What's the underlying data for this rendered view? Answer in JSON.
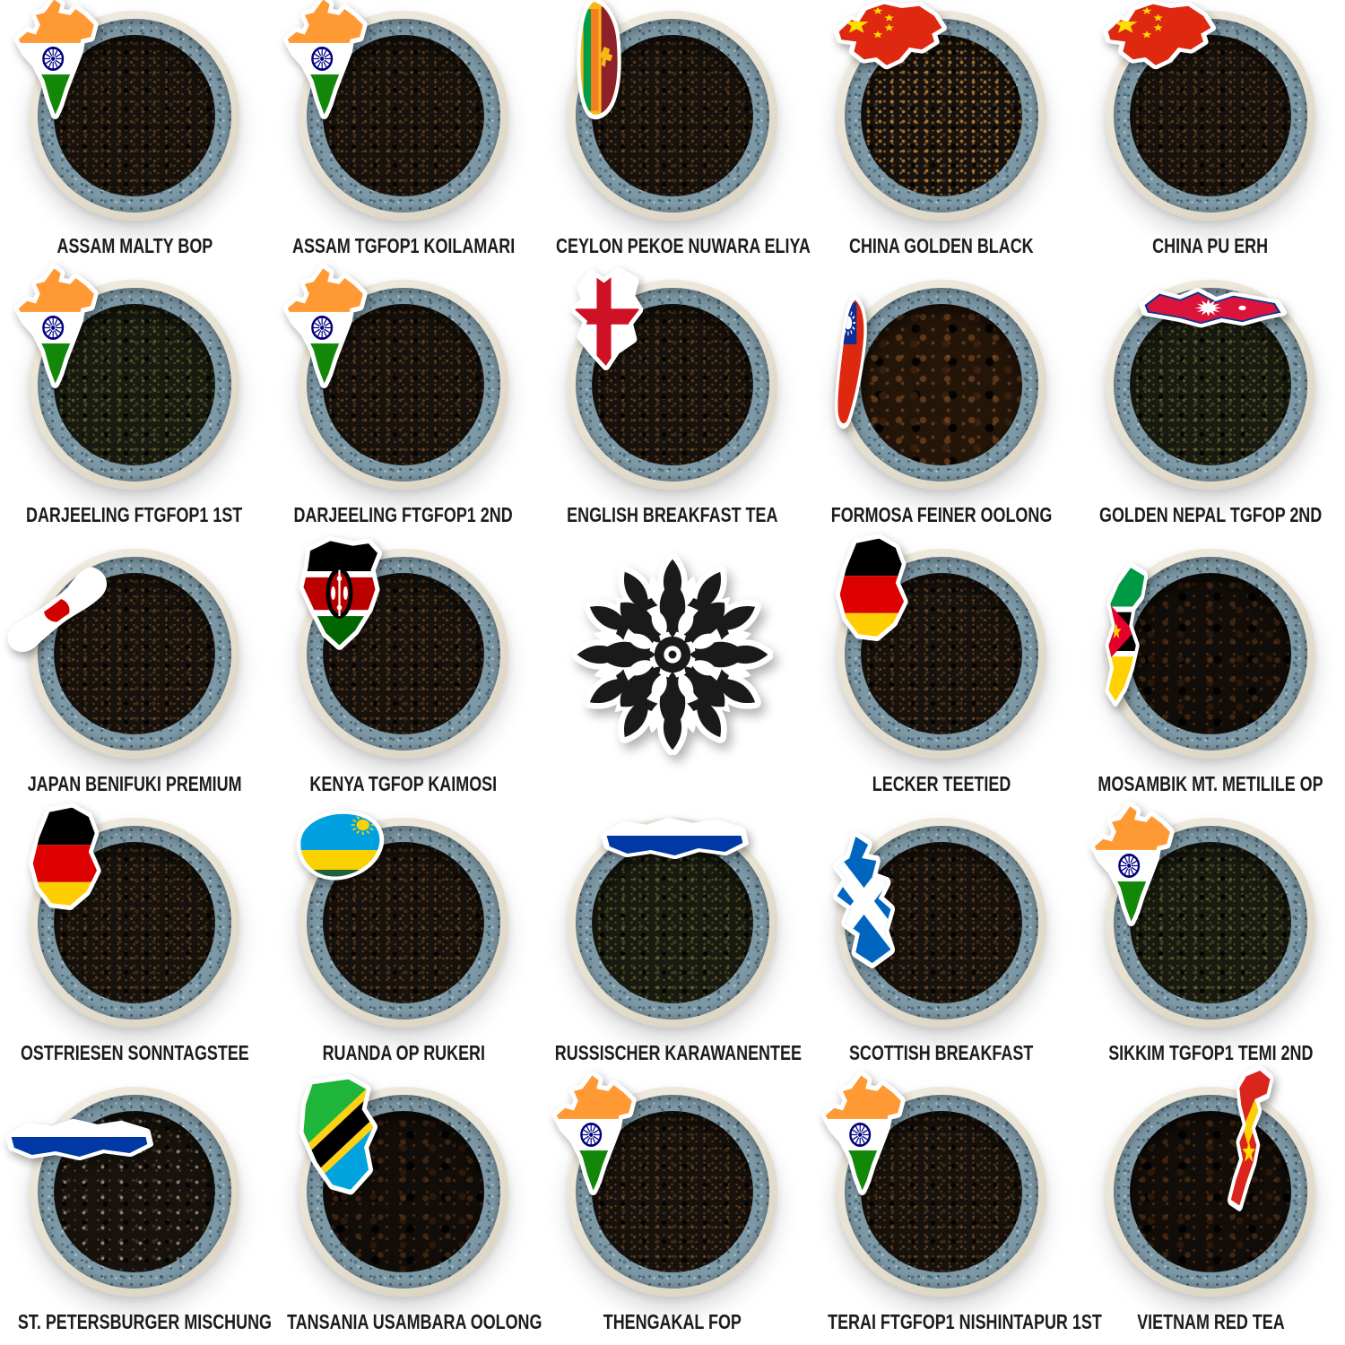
{
  "page": {
    "background": "#ffffff",
    "description_visible_text_only": true
  },
  "colors": {
    "label_color": "#1C1C1C",
    "bowl_rim": "#E9E3D6",
    "bowl_glaze_blue": "#7E99A6",
    "tea_dark": "#17120D",
    "logo_black": "#1A1A1A",
    "india_saffron": "#FF9933",
    "india_white": "#FFFFFF",
    "india_green": "#138808",
    "chakra_navy": "#000080",
    "china_red": "#DE2910",
    "star_yellow": "#FFDE00",
    "srilanka_gold": "#F7B718",
    "srilanka_green": "#009E49",
    "srilanka_orange": "#F47E20",
    "srilanka_maroon": "#8D2029",
    "england_white": "#FFFFFF",
    "england_red": "#CE1124",
    "taiwan_red": "#DE2910",
    "taiwan_blue": "#102D96",
    "nepal_crimson": "#DC143C",
    "nepal_blue": "#003893",
    "japan_white": "#FFFFFF",
    "japan_red": "#D30000",
    "kenya_black": "#000000",
    "kenya_red": "#BB0000",
    "kenya_green": "#006600",
    "germany_black": "#000000",
    "germany_red": "#DD0000",
    "germany_gold": "#FFCE00",
    "moz_green": "#009A44",
    "moz_black": "#000000",
    "moz_yellow": "#FFD100",
    "moz_red": "#E4002B",
    "rwanda_blue": "#00A1DE",
    "rwanda_yellow": "#FAD201",
    "rwanda_green": "#20603D",
    "russia_white": "#FFFFFF",
    "russia_blue": "#0039A6",
    "russia_red": "#D52B1E",
    "scotland_blue": "#0065BF",
    "scotland_white": "#FFFFFF",
    "tanzania_green": "#1EB53A",
    "tanzania_blue": "#00A3DD",
    "tanzania_yellow": "#FCD116",
    "tanzania_black": "#000000",
    "vietnam_red": "#DA251D"
  },
  "grid": {
    "rows": [
      [
        {
          "label": "ASSAM MALTY BOP",
          "flag": "india",
          "flag_icon": "india-map-flag-icon",
          "flag_pos": "tl",
          "tea_style": "fine"
        },
        {
          "label": "ASSAM TGFOP1 KOILAMARI",
          "flag": "india",
          "flag_icon": "india-map-flag-icon",
          "flag_pos": "tl",
          "tea_style": "fine"
        },
        {
          "label": "CEYLON PEKOE NUWARA ELIYA",
          "flag": "srilanka",
          "flag_icon": "sri-lanka-map-flag-icon",
          "flag_pos": "tl",
          "tea_style": "fine"
        },
        {
          "label": "CHINA GOLDEN BLACK",
          "flag": "china",
          "flag_icon": "china-map-flag-icon",
          "flag_pos": "tl",
          "tea_style": "golden"
        },
        {
          "label": "CHINA PU ERH",
          "flag": "china",
          "flag_icon": "china-map-flag-icon",
          "flag_pos": "tl",
          "tea_style": "fine"
        }
      ],
      [
        {
          "label": "DARJEELING FTGFOP1 1ST",
          "flag": "india",
          "flag_icon": "india-map-flag-icon",
          "flag_pos": "tl",
          "tea_style": "green"
        },
        {
          "label": "DARJEELING FTGFOP1 2ND",
          "flag": "india",
          "flag_icon": "india-map-flag-icon",
          "flag_pos": "tl",
          "tea_style": "fine"
        },
        {
          "label": "ENGLISH BREAKFAST TEA",
          "flag": "england",
          "flag_icon": "england-map-flag-icon",
          "flag_pos": "tl",
          "tea_style": "fine"
        },
        {
          "label": "FORMOSA FEINER OOLONG",
          "flag": "taiwan",
          "flag_icon": "taiwan-map-flag-icon",
          "flag_pos": "left",
          "tea_style": "oolong"
        },
        {
          "label": "GOLDEN NEPAL TGFOP 2ND",
          "flag": "nepal",
          "flag_icon": "nepal-map-flag-icon",
          "flag_pos": "top",
          "tea_style": "green"
        }
      ],
      [
        {
          "label": "JAPAN BENIFUKI PREMIUM",
          "flag": "japan",
          "flag_icon": "japan-map-flag-icon",
          "flag_pos": "left",
          "tea_style": "fine"
        },
        {
          "label": "KENYA TGFOP KAIMOSI",
          "flag": "kenya",
          "flag_icon": "kenya-map-flag-icon",
          "flag_pos": "tl",
          "tea_style": "fine"
        },
        {
          "type": "logo",
          "icon": "lotus-flower-logo-icon"
        },
        {
          "label": "LECKER TEETIED",
          "flag": "germany",
          "flag_icon": "germany-map-flag-icon",
          "flag_pos": "tl",
          "tea_style": "fine"
        },
        {
          "label": "MOSAMBIK MT. METILILE OP",
          "flag": "mozambique",
          "flag_icon": "mozambique-map-flag-icon",
          "flag_pos": "left",
          "tea_style": "leafy"
        }
      ],
      [
        {
          "label": "OSTFRIESEN SONNTAGSTEE",
          "flag": "germany",
          "flag_icon": "germany-map-flag-icon",
          "flag_pos": "tl",
          "tea_style": "fine"
        },
        {
          "label": "RUANDA OP RUKERI",
          "flag": "rwanda",
          "flag_icon": "rwanda-map-flag-icon",
          "flag_pos": "tl",
          "tea_style": "fine"
        },
        {
          "label": "RUSSISCHER KARAWANENTEE",
          "flag": "russia",
          "flag_icon": "russia-map-flag-icon",
          "flag_pos": "top",
          "tea_style": "green"
        },
        {
          "label": "SCOTTISH BREAKFAST",
          "flag": "scotland",
          "flag_icon": "scotland-map-flag-icon",
          "flag_pos": "left",
          "tea_style": "fine"
        },
        {
          "label": "SIKKIM TGFOP1 TEMI 2ND",
          "flag": "india",
          "flag_icon": "india-map-flag-icon",
          "flag_pos": "tl",
          "tea_style": "green"
        }
      ],
      [
        {
          "label": "ST. PETERSBURGER MISCHUNG",
          "flag": "russia",
          "flag_icon": "russia-map-flag-icon",
          "flag_pos": "left",
          "tea_style": "tips"
        },
        {
          "label": "TANSANIA USAMBARA OOLONG",
          "flag": "tanzania",
          "flag_icon": "tanzania-map-flag-icon",
          "flag_pos": "tl",
          "tea_style": "leafy"
        },
        {
          "label": "THENGAKAL FOP",
          "flag": "india",
          "flag_icon": "india-map-flag-icon",
          "flag_pos": "tl",
          "tea_style": "fine"
        },
        {
          "label": "TERAI FTGFOP1 NISHINTAPUR 1ST",
          "flag": "india",
          "flag_icon": "india-map-flag-icon",
          "flag_pos": "tl",
          "tea_style": "fine"
        },
        {
          "label": "VIETNAM RED TEA",
          "flag": "vietnam",
          "flag_icon": "vietnam-map-flag-icon",
          "flag_pos": "tr",
          "tea_style": "leafy"
        }
      ]
    ]
  }
}
